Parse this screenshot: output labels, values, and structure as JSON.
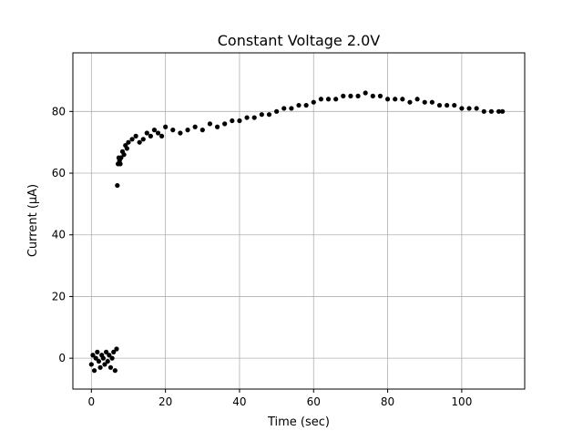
{
  "chart_data": {
    "type": "scatter",
    "title": "Constant Voltage 2.0V",
    "xlabel": "Time (sec)",
    "ylabel": "Current (µA)",
    "xlim": [
      -5,
      117
    ],
    "ylim": [
      -10,
      99
    ],
    "xticks": [
      0,
      20,
      40,
      60,
      80,
      100
    ],
    "yticks": [
      0,
      20,
      40,
      60,
      80
    ],
    "grid": true,
    "legend": "none",
    "marker_color": "#000000",
    "grid_color": "#b0b0b0",
    "x": [
      0.0,
      0.4,
      0.8,
      1.2,
      1.6,
      2.0,
      2.4,
      2.8,
      3.2,
      3.6,
      4.0,
      4.4,
      4.8,
      5.2,
      5.6,
      6.0,
      6.4,
      6.8,
      7.0,
      7.2,
      7.4,
      7.6,
      7.8,
      8.0,
      8.4,
      8.8,
      9.2,
      9.6,
      10.0,
      11.0,
      12.0,
      13.0,
      14.0,
      15.0,
      16.0,
      17.0,
      18.0,
      19.0,
      20.0,
      22.0,
      24.0,
      26.0,
      28.0,
      30.0,
      32.0,
      34.0,
      36.0,
      38.0,
      40.0,
      42.0,
      44.0,
      46.0,
      48.0,
      50.0,
      52.0,
      54.0,
      56.0,
      58.0,
      60.0,
      62.0,
      64.0,
      66.0,
      68.0,
      70.0,
      72.0,
      74.0,
      76.0,
      78.0,
      80.0,
      82.0,
      84.0,
      86.0,
      88.0,
      90.0,
      92.0,
      94.0,
      96.0,
      98.0,
      100.0,
      102.0,
      104.0,
      106.0,
      108.0,
      110.0,
      111.0
    ],
    "y": [
      -2,
      1,
      -4,
      0,
      2,
      -1,
      -3,
      1,
      0,
      -2,
      2,
      -1,
      1,
      -3,
      0,
      2,
      -4,
      3,
      56,
      63,
      65,
      64,
      63,
      65,
      67,
      66,
      69,
      68,
      70,
      71,
      72,
      70,
      71,
      73,
      72,
      74,
      73,
      72,
      75,
      74,
      73,
      74,
      75,
      74,
      76,
      75,
      76,
      77,
      77,
      78,
      78,
      79,
      79,
      80,
      81,
      81,
      82,
      82,
      83,
      84,
      84,
      84,
      85,
      85,
      85,
      86,
      85,
      85,
      84,
      84,
      84,
      83,
      84,
      83,
      83,
      82,
      82,
      82,
      81,
      81,
      81,
      80,
      80,
      80,
      80
    ]
  }
}
